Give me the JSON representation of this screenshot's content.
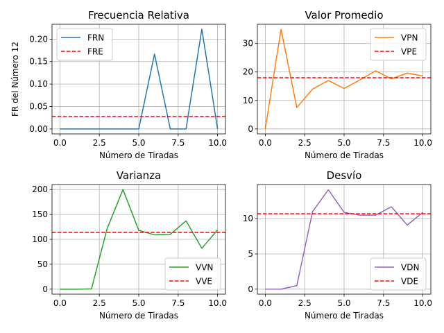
{
  "chart_data": [
    {
      "type": "line",
      "title": "Frecuencia Relativa",
      "xlabel": "Número de Tiradas",
      "ylabel": "FR del Número 12",
      "xlim": [
        -0.5,
        10.5
      ],
      "ylim": [
        -0.011,
        0.233
      ],
      "xticks": [
        0,
        2.5,
        5,
        7.5,
        10
      ],
      "xtick_labels": [
        "0.0",
        "2.5",
        "5.0",
        "7.5",
        "10.0"
      ],
      "yticks": [
        0,
        0.05,
        0.1,
        0.15,
        0.2
      ],
      "ytick_labels": [
        "0.00",
        "0.05",
        "0.10",
        "0.15",
        "0.20"
      ],
      "grid": true,
      "legend_position": "top-left",
      "x": [
        0,
        1,
        2,
        3,
        4,
        5,
        6,
        7,
        8,
        9,
        10
      ],
      "series": [
        {
          "name": "FRN",
          "style": "solid",
          "color": "#1f77b4",
          "values": [
            0,
            0,
            0,
            0,
            0,
            0,
            0.1667,
            0,
            0,
            0.2222,
            0
          ]
        },
        {
          "name": "FRE",
          "style": "dashed",
          "color": "#ff0000",
          "hline": 0.0278
        }
      ]
    },
    {
      "type": "line",
      "title": "Valor Promedio",
      "xlabel": "Número de Tiradas",
      "ylabel": "",
      "xlim": [
        -0.5,
        10.5
      ],
      "ylim": [
        -1.75,
        36.75
      ],
      "xticks": [
        0,
        2.5,
        5,
        7.5,
        10
      ],
      "xtick_labels": [
        "0.0",
        "2.5",
        "5.0",
        "7.5",
        "10.0"
      ],
      "yticks": [
        0,
        10,
        20,
        30
      ],
      "ytick_labels": [
        "0",
        "10",
        "20",
        "30"
      ],
      "grid": true,
      "legend_position": "top-right",
      "x": [
        0,
        1,
        2,
        3,
        4,
        5,
        6,
        7,
        8,
        9,
        10
      ],
      "series": [
        {
          "name": "VPN",
          "style": "solid",
          "color": "#ff7f0e",
          "values": [
            0,
            35,
            7.5,
            14,
            17,
            14.2,
            17.2,
            20.4,
            17.6,
            19.6,
            18.6
          ]
        },
        {
          "name": "VPE",
          "style": "dashed",
          "color": "#ff0000",
          "hline": 18
        }
      ]
    },
    {
      "type": "line",
      "title": "Varianza",
      "xlabel": "Número de Tiradas",
      "ylabel": "",
      "xlim": [
        -0.5,
        10.5
      ],
      "ylim": [
        -10,
        210
      ],
      "xticks": [
        0,
        2.5,
        5,
        7.5,
        10
      ],
      "xtick_labels": [
        "0.0",
        "2.5",
        "5.0",
        "7.5",
        "10.0"
      ],
      "yticks": [
        0,
        50,
        100,
        150,
        200
      ],
      "ytick_labels": [
        "0",
        "50",
        "100",
        "150",
        "200"
      ],
      "grid": true,
      "legend_position": "bottom-right",
      "x": [
        0,
        1,
        2,
        3,
        4,
        5,
        6,
        7,
        8,
        9,
        10
      ],
      "series": [
        {
          "name": "VVN",
          "style": "solid",
          "color": "#2ca02c",
          "values": [
            0,
            0,
            0.5,
            122,
            200,
            118,
            109,
            110,
            137,
            82,
            119
          ]
        },
        {
          "name": "VVE",
          "style": "dashed",
          "color": "#ff0000",
          "hline": 114
        }
      ]
    },
    {
      "type": "line",
      "title": "Desvío",
      "xlabel": "Número de Tiradas",
      "ylabel": "",
      "xlim": [
        -0.5,
        10.5
      ],
      "ylim": [
        -0.71,
        14.85
      ],
      "xticks": [
        0,
        2.5,
        5,
        7.5,
        10
      ],
      "xtick_labels": [
        "0.0",
        "2.5",
        "5.0",
        "7.5",
        "10.0"
      ],
      "yticks": [
        0,
        5,
        10
      ],
      "ytick_labels": [
        "0",
        "5",
        "10"
      ],
      "grid": true,
      "legend_position": "bottom-right",
      "x": [
        0,
        1,
        2,
        3,
        4,
        5,
        6,
        7,
        8,
        9,
        10
      ],
      "series": [
        {
          "name": "VDN",
          "style": "solid",
          "color": "#9467bd",
          "values": [
            0,
            0,
            0.5,
            11,
            14.1,
            10.9,
            10.5,
            10.5,
            11.7,
            9.1,
            10.9
          ]
        },
        {
          "name": "VDE",
          "style": "dashed",
          "color": "#ff0000",
          "hline": 10.7
        }
      ]
    }
  ]
}
